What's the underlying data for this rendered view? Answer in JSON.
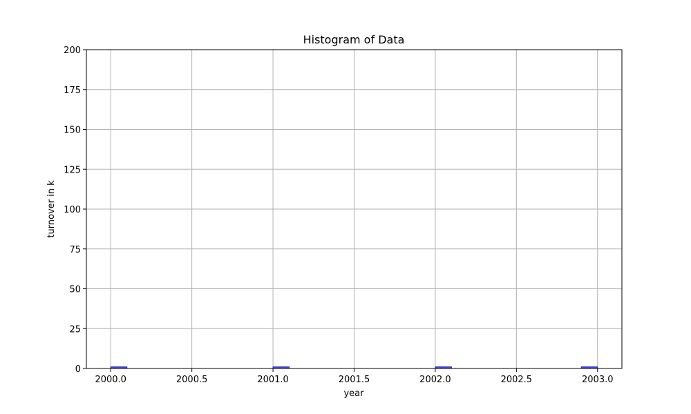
{
  "chart_data": {
    "type": "bar",
    "title": "Histogram of Data",
    "xlabel": "year",
    "ylabel": "turnover in k",
    "xlim": [
      1999.85,
      2003.15
    ],
    "ylim": [
      0,
      200
    ],
    "xticks": [
      2000.0,
      2000.5,
      2001.0,
      2001.5,
      2002.0,
      2002.5,
      2003.0
    ],
    "xtick_labels": [
      "2000.0",
      "2000.5",
      "2001.0",
      "2001.5",
      "2002.0",
      "2002.5",
      "2003.0"
    ],
    "yticks": [
      0,
      25,
      50,
      75,
      100,
      125,
      150,
      175,
      200
    ],
    "ytick_labels": [
      "0",
      "25",
      "50",
      "75",
      "100",
      "125",
      "150",
      "175",
      "200"
    ],
    "grid": true,
    "bin_width": 0.1,
    "bars": [
      {
        "x_start": 2000.0,
        "x_end": 2000.1,
        "value": 1
      },
      {
        "x_start": 2001.0,
        "x_end": 2001.1,
        "value": 1
      },
      {
        "x_start": 2002.0,
        "x_end": 2002.1,
        "value": 1
      },
      {
        "x_start": 2002.9,
        "x_end": 2003.0,
        "value": 1
      }
    ],
    "colors": {
      "bar_fill": "#4a4adf",
      "bar_edge": "#2424c4"
    }
  }
}
